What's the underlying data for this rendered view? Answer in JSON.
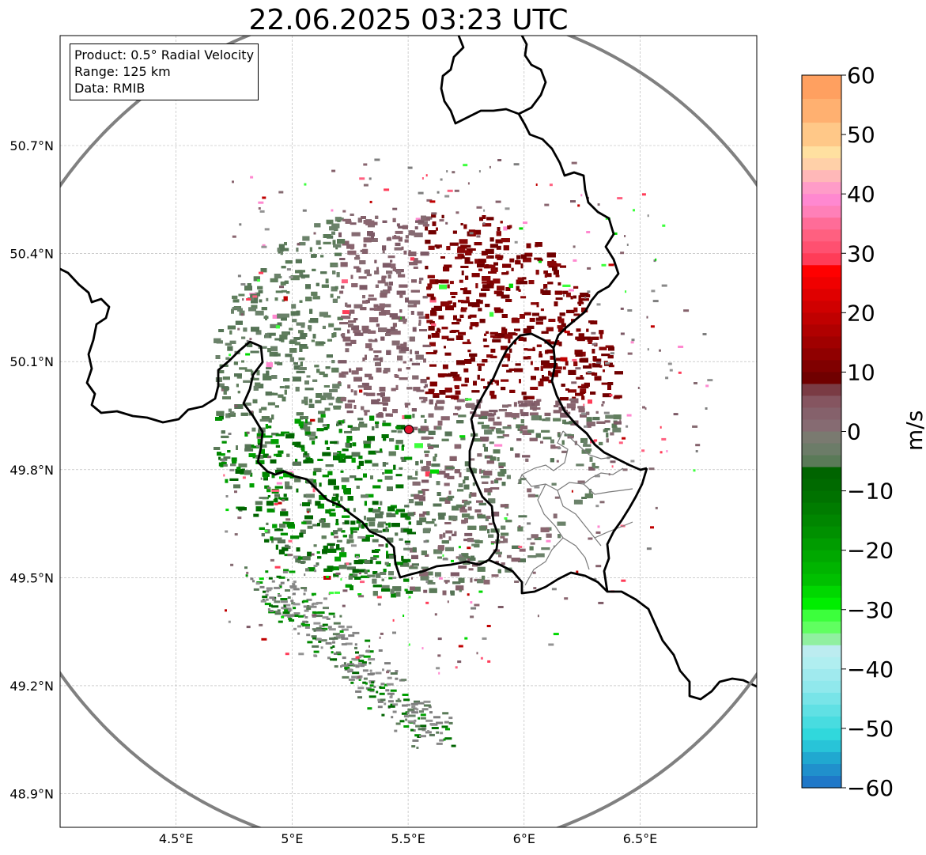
{
  "title": "22.06.2025 03:23 UTC",
  "info_box": {
    "product": "Product: 0.5° Radial Velocity",
    "range": "Range: 125 km",
    "data": "Data: RMIB"
  },
  "map": {
    "lon_range": [
      4.0,
      7.0
    ],
    "lat_range": [
      48.8,
      51.0
    ],
    "lon_ticks": [
      {
        "value": 4.5,
        "label": "4.5°E"
      },
      {
        "value": 5.0,
        "label": "5°E"
      },
      {
        "value": 5.5,
        "label": "5.5°E"
      },
      {
        "value": 6.0,
        "label": "6°E"
      },
      {
        "value": 6.5,
        "label": "6.5°E"
      }
    ],
    "lat_ticks": [
      {
        "value": 50.7,
        "label": "50.7°N"
      },
      {
        "value": 50.4,
        "label": "50.4°N"
      },
      {
        "value": 50.1,
        "label": "50.1°N"
      },
      {
        "value": 49.8,
        "label": "49.8°N"
      },
      {
        "value": 49.5,
        "label": "49.5°N"
      },
      {
        "value": 49.2,
        "label": "49.2°N"
      },
      {
        "value": 48.9,
        "label": "48.9°N"
      }
    ],
    "grid": true,
    "radar_site": {
      "lon": 5.505,
      "lat": 49.914
    },
    "range_ring_color": "#808080",
    "border_color": "#000000",
    "colors": {
      "inbound_strong": "#00c000",
      "inbound_weak": "#5a7a58",
      "outbound_weak": "#85616b",
      "outbound_strong": "#7a0000",
      "site_marker": "#e0102c"
    }
  },
  "colorbar": {
    "unit": "m/s",
    "min": -60,
    "max": 60,
    "ticks": [
      {
        "value": 60,
        "label": "60"
      },
      {
        "value": 50,
        "label": "50"
      },
      {
        "value": 40,
        "label": "40"
      },
      {
        "value": 30,
        "label": "30"
      },
      {
        "value": 20,
        "label": "20"
      },
      {
        "value": 10,
        "label": "10"
      },
      {
        "value": 0,
        "label": "0"
      },
      {
        "value": -10,
        "label": "−10"
      },
      {
        "value": -20,
        "label": "−20"
      },
      {
        "value": -30,
        "label": "−30"
      },
      {
        "value": -40,
        "label": "−40"
      },
      {
        "value": -50,
        "label": "−50"
      },
      {
        "value": -60,
        "label": "−60"
      }
    ],
    "bands": [
      {
        "from": 56,
        "to": 60,
        "color": "#ffa060"
      },
      {
        "from": 52,
        "to": 56,
        "color": "#ffb070"
      },
      {
        "from": 48,
        "to": 52,
        "color": "#ffc888"
      },
      {
        "from": 46,
        "to": 48,
        "color": "#ffe0a0"
      },
      {
        "from": 44,
        "to": 46,
        "color": "#ffd0a8"
      },
      {
        "from": 42,
        "to": 44,
        "color": "#ffb8b8"
      },
      {
        "from": 40,
        "to": 42,
        "color": "#ff9cc8"
      },
      {
        "from": 38,
        "to": 40,
        "color": "#ff88d0"
      },
      {
        "from": 36,
        "to": 38,
        "color": "#ff80b8"
      },
      {
        "from": 34,
        "to": 36,
        "color": "#ff6c98"
      },
      {
        "from": 32,
        "to": 34,
        "color": "#ff6080"
      },
      {
        "from": 30,
        "to": 32,
        "color": "#ff5070"
      },
      {
        "from": 28,
        "to": 30,
        "color": "#ff3c58"
      },
      {
        "from": 26,
        "to": 28,
        "color": "#ff0000"
      },
      {
        "from": 24,
        "to": 26,
        "color": "#f00000"
      },
      {
        "from": 22,
        "to": 24,
        "color": "#e00000"
      },
      {
        "from": 20,
        "to": 22,
        "color": "#d00000"
      },
      {
        "from": 18,
        "to": 20,
        "color": "#c00000"
      },
      {
        "from": 16,
        "to": 18,
        "color": "#b00000"
      },
      {
        "from": 14,
        "to": 16,
        "color": "#a00000"
      },
      {
        "from": 12,
        "to": 14,
        "color": "#900000"
      },
      {
        "from": 10,
        "to": 12,
        "color": "#800000"
      },
      {
        "from": 8,
        "to": 10,
        "color": "#700000"
      },
      {
        "from": 6,
        "to": 8,
        "color": "#7a3b44"
      },
      {
        "from": 4,
        "to": 6,
        "color": "#855560"
      },
      {
        "from": 2,
        "to": 4,
        "color": "#85616b"
      },
      {
        "from": 0,
        "to": 2,
        "color": "#866b72"
      },
      {
        "from": -2,
        "to": 0,
        "color": "#7a7a70"
      },
      {
        "from": -4,
        "to": -2,
        "color": "#6c7c68"
      },
      {
        "from": -6,
        "to": -4,
        "color": "#5a7a58"
      },
      {
        "from": -8,
        "to": -6,
        "color": "#006400"
      },
      {
        "from": -10,
        "to": -8,
        "color": "#006a00"
      },
      {
        "from": -12,
        "to": -10,
        "color": "#007200"
      },
      {
        "from": -14,
        "to": -12,
        "color": "#007c00"
      },
      {
        "from": -16,
        "to": -14,
        "color": "#008600"
      },
      {
        "from": -18,
        "to": -16,
        "color": "#009000"
      },
      {
        "from": -20,
        "to": -18,
        "color": "#009c00"
      },
      {
        "from": -22,
        "to": -20,
        "color": "#00a800"
      },
      {
        "from": -24,
        "to": -22,
        "color": "#00b400"
      },
      {
        "from": -26,
        "to": -24,
        "color": "#00c000"
      },
      {
        "from": -28,
        "to": -26,
        "color": "#00d800"
      },
      {
        "from": -30,
        "to": -28,
        "color": "#00ee00"
      },
      {
        "from": -32,
        "to": -30,
        "color": "#3cff3c"
      },
      {
        "from": -34,
        "to": -32,
        "color": "#60ff60"
      },
      {
        "from": -36,
        "to": -34,
        "color": "#90f0a0"
      },
      {
        "from": -38,
        "to": -36,
        "color": "#bcecf0"
      },
      {
        "from": -40,
        "to": -38,
        "color": "#b0eef0"
      },
      {
        "from": -42,
        "to": -40,
        "color": "#a0eaee"
      },
      {
        "from": -44,
        "to": -42,
        "color": "#90e8ec"
      },
      {
        "from": -46,
        "to": -44,
        "color": "#78e4e8"
      },
      {
        "from": -48,
        "to": -46,
        "color": "#60e0e4"
      },
      {
        "from": -50,
        "to": -48,
        "color": "#48dce0"
      },
      {
        "from": -52,
        "to": -50,
        "color": "#30d8dc"
      },
      {
        "from": -54,
        "to": -52,
        "color": "#28c4d8"
      },
      {
        "from": -56,
        "to": -54,
        "color": "#20a8d0"
      },
      {
        "from": -58,
        "to": -56,
        "color": "#2090cc"
      },
      {
        "from": -60,
        "to": -58,
        "color": "#1f78c8"
      }
    ]
  }
}
